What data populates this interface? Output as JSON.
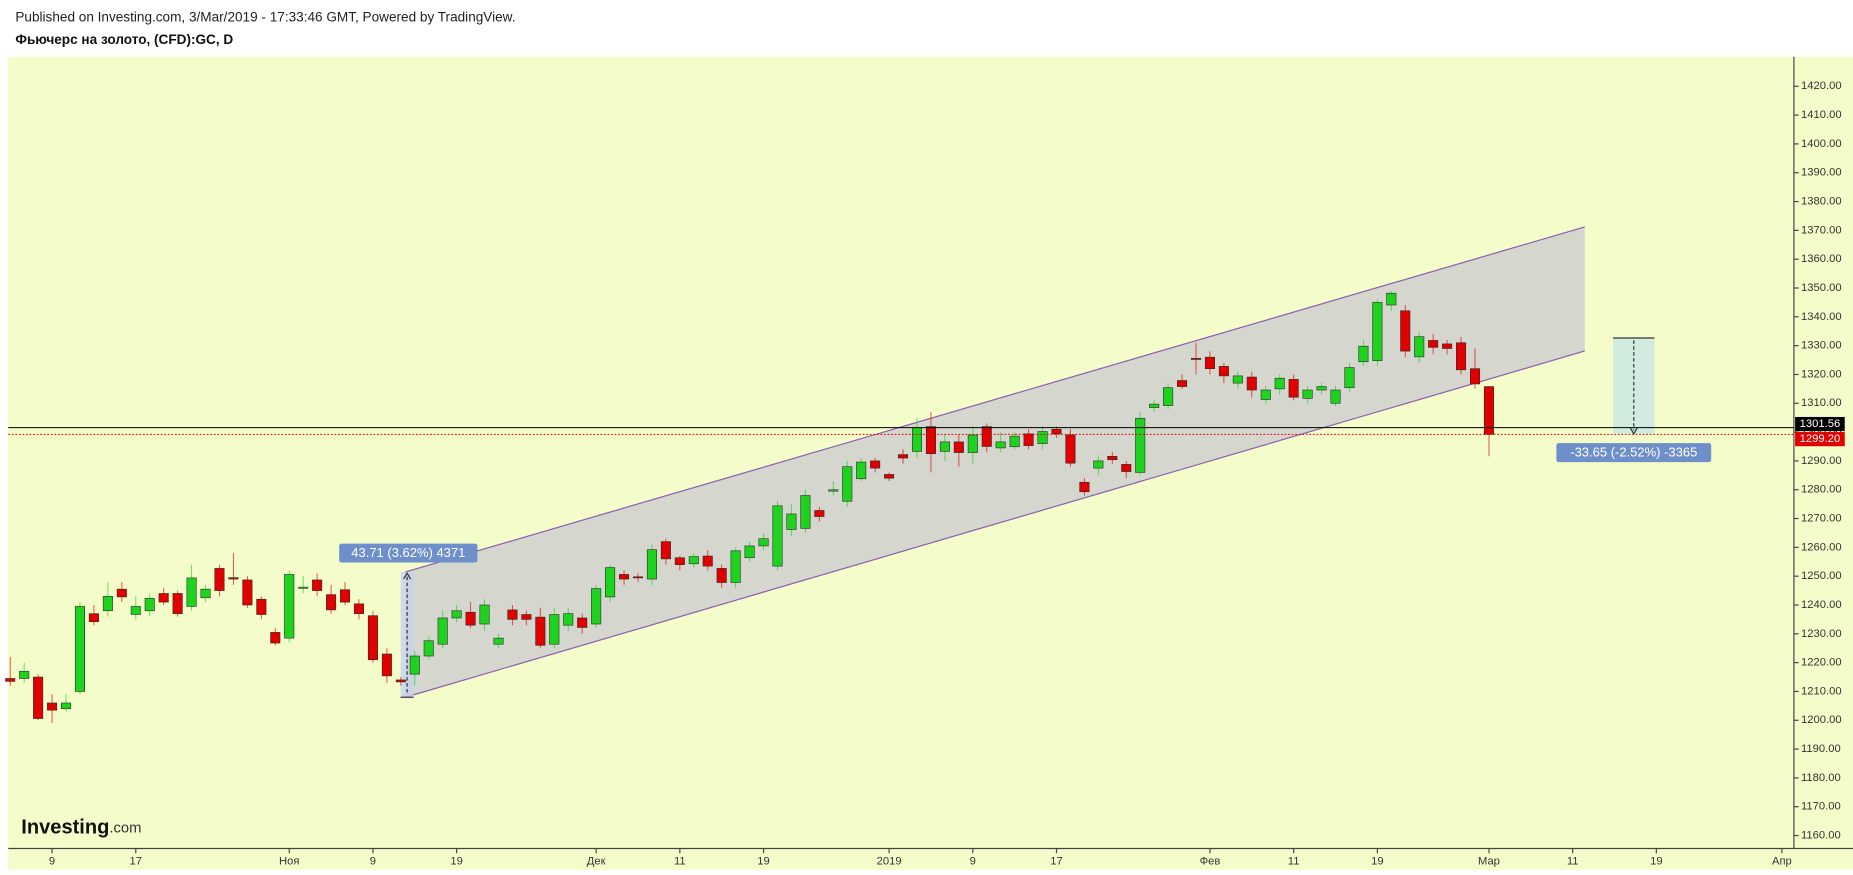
{
  "chart_data": {
    "type": "candlestick",
    "subtitle": "Published on Investing.com, 3/Mar/2019 - 17:33:46 GMT, Powered by TradingView.",
    "title": "Фьючерс на золото, (CFD):GC, D",
    "watermark": [
      "Investing",
      ".com"
    ],
    "measure_labels": [
      "43.71 (3.62%) 4371",
      "-33.65 (-2.52%) -3365"
    ],
    "up_color": "#1ed31e",
    "down_color": "#e00000",
    "grid": false,
    "xlim": [
      -0.14,
      127.86
    ],
    "ylim": [
      1155.5,
      1430.25
    ],
    "xticks": [
      {
        "value": 3,
        "label": "9"
      },
      {
        "value": 9,
        "label": "17"
      },
      {
        "value": 20,
        "label": "Ноя"
      },
      {
        "value": 26,
        "label": "9"
      },
      {
        "value": 32,
        "label": "19"
      },
      {
        "value": 42,
        "label": "Дек"
      },
      {
        "value": 48,
        "label": "11"
      },
      {
        "value": 54,
        "label": "19"
      },
      {
        "value": 63,
        "label": "2019"
      },
      {
        "value": 69,
        "label": "9"
      },
      {
        "value": 75,
        "label": "17"
      },
      {
        "value": 86,
        "label": "Фев"
      },
      {
        "value": 92,
        "label": "11"
      },
      {
        "value": 98,
        "label": "19"
      },
      {
        "value": 106,
        "label": "Мар"
      },
      {
        "value": 112,
        "label": "11"
      },
      {
        "value": 118,
        "label": "19"
      },
      {
        "value": 127,
        "label": "Апр"
      }
    ],
    "yticks": [
      {
        "value": 1160,
        "label": "1160.00"
      },
      {
        "value": 1170,
        "label": "1170.00"
      },
      {
        "value": 1180,
        "label": "1180.00"
      },
      {
        "value": 1190,
        "label": "1190.00"
      },
      {
        "value": 1200,
        "label": "1200.00"
      },
      {
        "value": 1210,
        "label": "1210.00"
      },
      {
        "value": 1220,
        "label": "1220.00"
      },
      {
        "value": 1230,
        "label": "1230.00"
      },
      {
        "value": 1240,
        "label": "1240.00"
      },
      {
        "value": 1250,
        "label": "1250.00"
      },
      {
        "value": 1260,
        "label": "1260.00"
      },
      {
        "value": 1270,
        "label": "1270.00"
      },
      {
        "value": 1280,
        "label": "1280.00"
      },
      {
        "value": 1290,
        "label": "1290.00"
      },
      {
        "value": 1300,
        "label": "1300.00"
      },
      {
        "value": 1310,
        "label": "1310.00"
      },
      {
        "value": 1320,
        "label": "1320.00"
      },
      {
        "value": 1330,
        "label": "1330.00"
      },
      {
        "value": 1340,
        "label": "1340.00"
      },
      {
        "value": 1350,
        "label": "1350.00"
      },
      {
        "value": 1360,
        "label": "1360.00"
      },
      {
        "value": 1370,
        "label": "1370.00"
      },
      {
        "value": 1380,
        "label": "1380.00"
      },
      {
        "value": 1390,
        "label": "1390.00"
      },
      {
        "value": 1400,
        "label": "1400.00"
      },
      {
        "value": 1410,
        "label": "1410.00"
      },
      {
        "value": 1420,
        "label": "1420.00"
      }
    ],
    "price_lines": [
      {
        "value": 1301.56,
        "label": "1301.56",
        "color": "#000000",
        "style": "solid"
      },
      {
        "value": 1299.2,
        "label": "1299.20",
        "color": "#e00000",
        "style": "dotted"
      }
    ],
    "x": [
      0,
      1,
      2,
      3,
      4,
      5,
      6,
      7,
      8,
      9,
      10,
      11,
      12,
      13,
      14,
      15,
      16,
      17,
      18,
      19,
      20,
      21,
      22,
      23,
      24,
      25,
      26,
      27,
      28,
      29,
      30,
      31,
      32,
      33,
      34,
      35,
      36,
      37,
      38,
      39,
      40,
      41,
      42,
      43,
      44,
      45,
      46,
      47,
      48,
      49,
      50,
      51,
      52,
      53,
      54,
      55,
      56,
      57,
      58,
      59,
      60,
      61,
      62,
      63,
      64,
      65,
      66,
      67,
      68,
      69,
      70,
      71,
      72,
      73,
      74,
      75,
      76,
      77,
      78,
      79,
      80,
      81,
      82,
      83,
      84,
      85,
      86,
      87,
      88,
      89,
      90,
      91,
      92,
      93,
      94,
      95,
      96,
      97,
      98,
      99,
      100,
      101,
      102,
      103,
      104,
      105,
      106
    ],
    "open": [
      1214.5,
      1214.5,
      1215,
      1206,
      1204,
      1210,
      1237,
      1238,
      1245.5,
      1236.7,
      1238,
      1244,
      1244,
      1239.5,
      1242.5,
      1252.7,
      1249.5,
      1248.7,
      1242,
      1230.5,
      1228.5,
      1246,
      1248.7,
      1243.6,
      1245.3,
      1240.4,
      1236.3,
      1223,
      1214,
      1216,
      1222.3,
      1226.4,
      1235.5,
      1237.5,
      1233.4,
      1226.4,
      1238.3,
      1236.7,
      1235.8,
      1226.4,
      1233,
      1235.5,
      1233.4,
      1242.8,
      1250.6,
      1249.8,
      1249,
      1262,
      1256.4,
      1254.3,
      1257,
      1252.7,
      1247.8,
      1256.4,
      1260.5,
      1253.5,
      1266.2,
      1266.6,
      1272.8,
      1279.5,
      1276,
      1283.8,
      1290,
      1285.3,
      1292.2,
      1293.3,
      1301.9,
      1293.3,
      1296.6,
      1292.9,
      1301.9,
      1294.5,
      1294.9,
      1299.4,
      1296,
      1301,
      1299,
      1282.6,
      1287.5,
      1291.6,
      1288.8,
      1286,
      1308.5,
      1309.2,
      1317.9,
      1325.6,
      1326,
      1322.8,
      1317,
      1319.1,
      1311.3,
      1315,
      1318.3,
      1311.7,
      1314.6,
      1310,
      1315.4,
      1324.4,
      1324.8,
      1344.1,
      1342.1,
      1326.1,
      1331.8,
      1330.6,
      1331,
      1322,
      1315.8
    ],
    "high": [
      1222,
      1220,
      1216,
      1209,
      1209,
      1241,
      1240,
      1248,
      1248,
      1243,
      1244,
      1246,
      1245,
      1254,
      1247,
      1254,
      1258,
      1250,
      1243,
      1232,
      1252,
      1250,
      1251,
      1247,
      1248,
      1242,
      1238,
      1225,
      1215,
      1224,
      1229,
      1238,
      1240,
      1241,
      1242,
      1230,
      1240,
      1238,
      1239,
      1239,
      1239,
      1237,
      1247,
      1254,
      1252,
      1251,
      1261,
      1263,
      1257,
      1258,
      1259,
      1254,
      1260,
      1262,
      1265,
      1276,
      1275,
      1280,
      1274,
      1283,
      1290,
      1291,
      1291,
      1286,
      1294,
      1305,
      1307,
      1299,
      1299,
      1302,
      1303,
      1300,
      1300,
      1301,
      1302,
      1302,
      1301,
      1284,
      1292,
      1293,
      1290,
      1307,
      1311,
      1317,
      1320,
      1331,
      1328,
      1324,
      1321,
      1321,
      1316,
      1320,
      1320,
      1316,
      1317,
      1316,
      1324,
      1332,
      1346,
      1349,
      1344,
      1335,
      1334,
      1332,
      1333,
      1329,
      1316
    ],
    "low": [
      1212,
      1213,
      1200,
      1199,
      1203,
      1209,
      1233,
      1236,
      1241,
      1235,
      1236,
      1240,
      1236,
      1238,
      1241,
      1243,
      1247,
      1239,
      1235,
      1226,
      1227,
      1244,
      1243,
      1237,
      1240,
      1235,
      1220,
      1213,
      1212,
      1212,
      1221,
      1225,
      1234,
      1232,
      1231,
      1225,
      1233,
      1233,
      1225,
      1225,
      1231,
      1230,
      1232,
      1241,
      1247,
      1248,
      1247,
      1254,
      1252,
      1253,
      1252,
      1246,
      1246,
      1255,
      1259,
      1252,
      1264,
      1265,
      1269,
      1278,
      1274,
      1283,
      1286,
      1283,
      1289,
      1291,
      1286,
      1290,
      1288,
      1289,
      1293,
      1293,
      1294,
      1294,
      1294,
      1298,
      1288,
      1278,
      1285,
      1289,
      1284,
      1285,
      1307,
      1308,
      1315,
      1320,
      1320,
      1317,
      1315,
      1312,
      1310,
      1313,
      1311,
      1310,
      1313,
      1309,
      1314,
      1323,
      1323,
      1342,
      1326,
      1324,
      1327,
      1327,
      1320,
      1315,
      1291.6
    ],
    "close": [
      1213.5,
      1217,
      1200.6,
      1203.5,
      1206,
      1239.5,
      1234.2,
      1243,
      1242.8,
      1239.5,
      1242.3,
      1241,
      1237,
      1249.4,
      1245.5,
      1245,
      1249,
      1240,
      1236.7,
      1226.8,
      1250.6,
      1246.2,
      1245,
      1238.3,
      1241,
      1237,
      1221,
      1215.4,
      1213.3,
      1222.3,
      1227.6,
      1235.5,
      1238,
      1233,
      1240,
      1228.5,
      1235,
      1235,
      1226,
      1236.7,
      1237,
      1232.2,
      1245.7,
      1253,
      1249,
      1249.5,
      1259.2,
      1256,
      1254,
      1256.8,
      1253.5,
      1247.8,
      1258.8,
      1260.5,
      1263,
      1274.4,
      1271.6,
      1278,
      1270.7,
      1280,
      1288,
      1289.6,
      1287.5,
      1284,
      1291,
      1301.5,
      1292.5,
      1296.6,
      1292.9,
      1299,
      1295,
      1296.6,
      1298.6,
      1295.3,
      1300.2,
      1299.4,
      1289.2,
      1279.3,
      1290,
      1290.4,
      1286.3,
      1304.8,
      1309.7,
      1315.4,
      1315.8,
      1325.2,
      1322,
      1319.5,
      1319.5,
      1314.6,
      1314.6,
      1318.7,
      1312.1,
      1314.6,
      1315.8,
      1314.6,
      1322.4,
      1329.8,
      1345,
      1348.2,
      1328.1,
      1333.1,
      1329.4,
      1329,
      1321.6,
      1316.7,
      1299.2
    ]
  }
}
